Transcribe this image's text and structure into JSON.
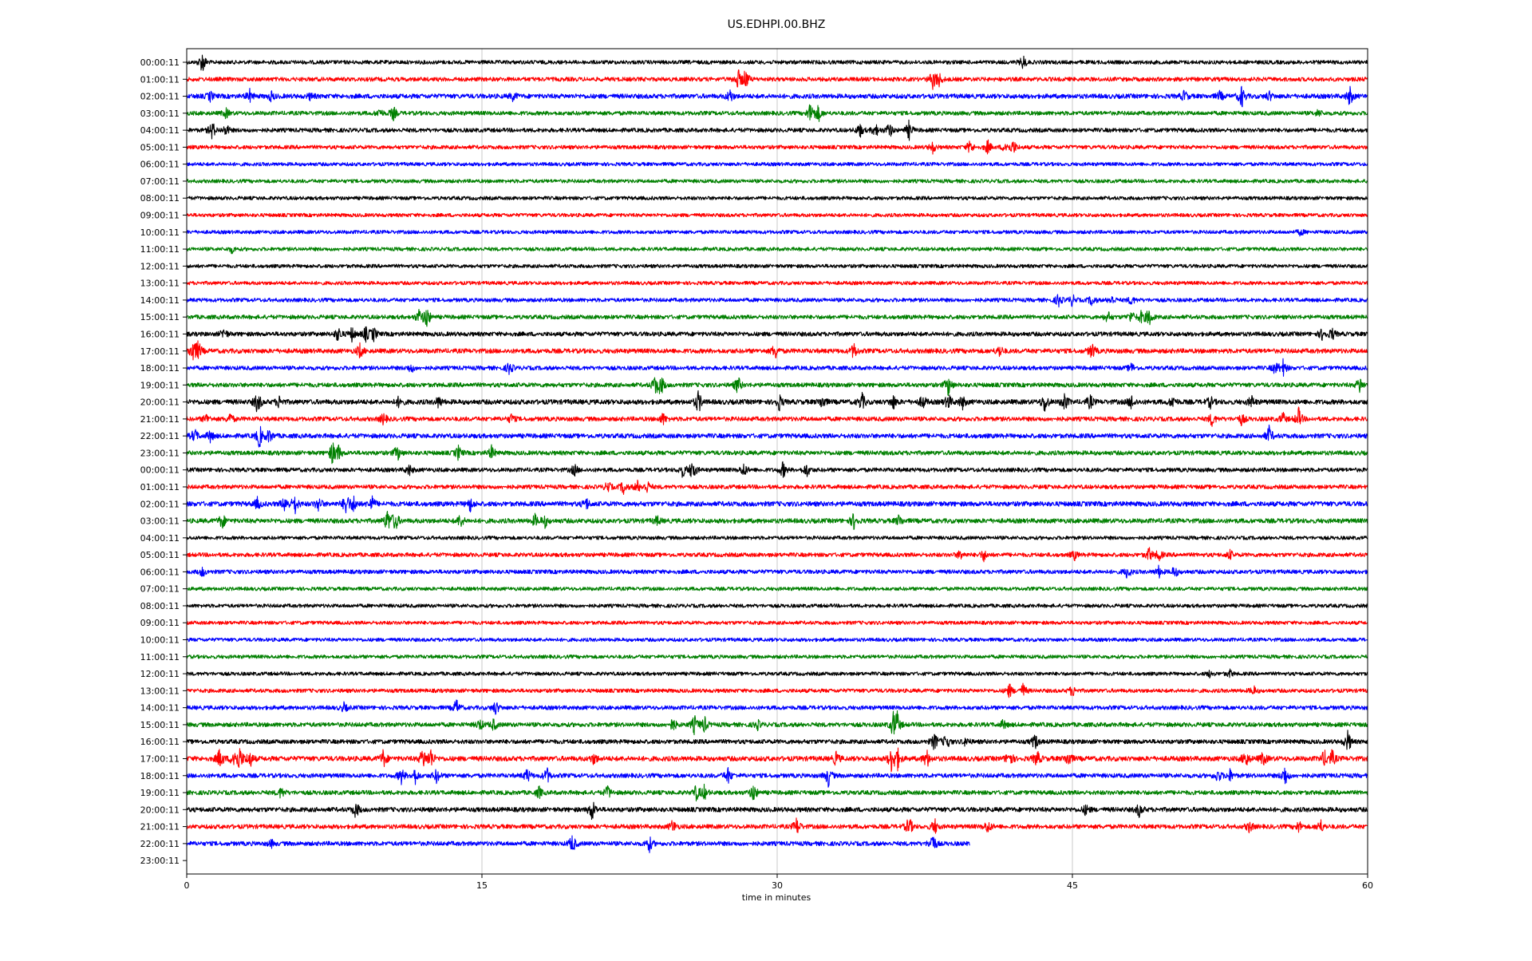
{
  "chart_data": {
    "type": "line",
    "title": "US.EDHPI.00.BHZ",
    "xlabel": "time in minutes",
    "ylabel": "",
    "xlim": [
      0,
      60
    ],
    "x_ticks": [
      "0",
      "15",
      "30",
      "45",
      "60"
    ],
    "grid": "vertical",
    "trace_colors": [
      "#000000",
      "#ff0000",
      "#0000ff",
      "#008000"
    ],
    "row_labels": [
      "00:00:11",
      "01:00:11",
      "02:00:11",
      "03:00:11",
      "04:00:11",
      "05:00:11",
      "06:00:11",
      "07:00:11",
      "08:00:11",
      "09:00:11",
      "10:00:11",
      "11:00:11",
      "12:00:11",
      "13:00:11",
      "14:00:11",
      "15:00:11",
      "16:00:11",
      "17:00:11",
      "18:00:11",
      "19:00:11",
      "20:00:11",
      "21:00:11",
      "22:00:11",
      "23:00:11",
      "00:00:11",
      "01:00:11",
      "02:00:11",
      "03:00:11",
      "04:00:11",
      "05:00:11",
      "06:00:11",
      "07:00:11",
      "08:00:11",
      "09:00:11",
      "10:00:11",
      "11:00:11",
      "12:00:11",
      "13:00:11",
      "14:00:11",
      "15:00:11",
      "16:00:11",
      "17:00:11",
      "18:00:11",
      "19:00:11",
      "20:00:11",
      "21:00:11",
      "22:00:11",
      "23:00:11"
    ],
    "trace_end_minutes": [
      60,
      60,
      60,
      60,
      60,
      60,
      60,
      60,
      60,
      60,
      60,
      60,
      60,
      60,
      60,
      60,
      60,
      60,
      60,
      60,
      60,
      60,
      60,
      60,
      60,
      60,
      60,
      60,
      60,
      60,
      60,
      60,
      60,
      60,
      60,
      60,
      60,
      60,
      60,
      60,
      60,
      60,
      60,
      60,
      60,
      60,
      39.8,
      0
    ],
    "noise_level": [
      0.25,
      0.3,
      0.4,
      0.3,
      0.3,
      0.25,
      0.2,
      0.2,
      0.2,
      0.2,
      0.2,
      0.2,
      0.2,
      0.2,
      0.25,
      0.3,
      0.35,
      0.4,
      0.3,
      0.35,
      0.45,
      0.35,
      0.4,
      0.35,
      0.3,
      0.3,
      0.45,
      0.4,
      0.2,
      0.3,
      0.3,
      0.2,
      0.2,
      0.2,
      0.2,
      0.2,
      0.2,
      0.25,
      0.3,
      0.35,
      0.35,
      0.45,
      0.35,
      0.35,
      0.4,
      0.35,
      0.35,
      0
    ],
    "events": [
      [
        [
          0.8,
          1.0
        ],
        [
          42.5,
          0.6
        ]
      ],
      [
        [
          28.0,
          0.9
        ],
        [
          28.4,
          0.9
        ],
        [
          37.9,
          0.8
        ],
        [
          38.2,
          0.7
        ]
      ],
      [
        [
          1.2,
          0.4
        ],
        [
          3.2,
          0.5
        ],
        [
          4.3,
          0.4
        ],
        [
          6.3,
          0.3
        ],
        [
          16.6,
          0.4
        ],
        [
          27.6,
          0.6
        ],
        [
          50.7,
          0.5
        ],
        [
          52.5,
          0.4
        ],
        [
          53.6,
          1.0
        ],
        [
          55.0,
          0.4
        ],
        [
          59.1,
          0.8
        ]
      ],
      [
        [
          2.0,
          0.4
        ],
        [
          9.8,
          0.4
        ],
        [
          10.5,
          0.6
        ],
        [
          31.7,
          1.0
        ],
        [
          32.1,
          0.7
        ],
        [
          57.5,
          0.3
        ]
      ],
      [
        [
          1.3,
          0.8
        ],
        [
          2.0,
          0.5
        ],
        [
          34.2,
          0.6
        ],
        [
          35.0,
          0.6
        ],
        [
          35.7,
          0.7
        ],
        [
          36.7,
          0.8
        ]
      ],
      [
        [
          37.9,
          0.5
        ],
        [
          39.8,
          0.6
        ],
        [
          40.7,
          0.6
        ],
        [
          41.6,
          0.5
        ],
        [
          42.0,
          0.6
        ]
      ],
      [],
      [],
      [],
      [],
      [
        [
          56.6,
          0.3
        ]
      ],
      [
        [
          2.3,
          0.3
        ]
      ],
      [],
      [],
      [
        [
          44.3,
          0.6
        ],
        [
          45.0,
          0.5
        ],
        [
          46.0,
          0.5
        ],
        [
          47.0,
          0.4
        ],
        [
          48.0,
          0.4
        ]
      ],
      [
        [
          11.8,
          0.6
        ],
        [
          12.2,
          1.0
        ],
        [
          46.8,
          0.5
        ],
        [
          48.0,
          0.5
        ],
        [
          48.5,
          0.5
        ],
        [
          48.9,
          0.8
        ]
      ],
      [
        [
          1.9,
          0.5
        ],
        [
          7.7,
          0.7
        ],
        [
          8.4,
          0.6
        ],
        [
          9.1,
          0.6
        ],
        [
          9.5,
          0.6
        ],
        [
          57.7,
          0.5
        ],
        [
          58.2,
          0.5
        ]
      ],
      [
        [
          0.3,
          1.0
        ],
        [
          0.6,
          0.8
        ],
        [
          8.8,
          0.6
        ],
        [
          29.9,
          0.7
        ],
        [
          33.9,
          0.7
        ],
        [
          41.3,
          0.5
        ],
        [
          46.0,
          0.7
        ]
      ],
      [
        [
          11.4,
          0.4
        ],
        [
          16.4,
          0.6
        ],
        [
          48.0,
          0.4
        ],
        [
          55.3,
          0.5
        ],
        [
          55.7,
          0.7
        ]
      ],
      [
        [
          23.8,
          0.8
        ],
        [
          24.1,
          0.9
        ],
        [
          28.0,
          0.8
        ],
        [
          38.7,
          0.9
        ],
        [
          59.6,
          0.7
        ]
      ],
      [
        [
          3.6,
          1.0
        ],
        [
          4.7,
          0.5
        ],
        [
          10.8,
          0.5
        ],
        [
          12.8,
          0.5
        ],
        [
          26.0,
          1.0
        ],
        [
          30.1,
          0.7
        ],
        [
          32.3,
          0.6
        ],
        [
          34.3,
          0.8
        ],
        [
          35.9,
          0.6
        ],
        [
          37.4,
          0.6
        ],
        [
          38.7,
          0.7
        ],
        [
          39.4,
          0.6
        ],
        [
          43.6,
          0.9
        ],
        [
          44.6,
          0.8
        ],
        [
          45.9,
          0.6
        ],
        [
          48.0,
          0.6
        ],
        [
          50.1,
          0.5
        ],
        [
          52.0,
          0.5
        ],
        [
          54.1,
          0.5
        ]
      ],
      [
        [
          1.0,
          0.4
        ],
        [
          2.2,
          0.5
        ],
        [
          10.0,
          0.5
        ],
        [
          16.5,
          0.4
        ],
        [
          24.2,
          0.5
        ],
        [
          52.1,
          0.6
        ],
        [
          53.6,
          0.5
        ],
        [
          55.7,
          0.5
        ],
        [
          56.5,
          0.9
        ]
      ],
      [
        [
          0.4,
          0.6
        ],
        [
          1.2,
          0.5
        ],
        [
          3.7,
          1.0
        ],
        [
          4.2,
          0.6
        ],
        [
          55.0,
          0.8
        ]
      ],
      [
        [
          7.4,
          0.9
        ],
        [
          7.7,
          0.7
        ],
        [
          10.7,
          0.7
        ],
        [
          13.8,
          0.6
        ],
        [
          15.5,
          0.6
        ]
      ],
      [
        [
          11.3,
          0.5
        ],
        [
          19.7,
          0.5
        ],
        [
          25.2,
          0.6
        ],
        [
          25.7,
          1.0
        ],
        [
          28.3,
          0.6
        ],
        [
          30.3,
          0.7
        ],
        [
          31.5,
          0.6
        ]
      ],
      [
        [
          21.4,
          0.5
        ],
        [
          22.2,
          0.6
        ],
        [
          22.9,
          0.5
        ],
        [
          23.4,
          0.5
        ]
      ],
      [
        [
          3.6,
          0.5
        ],
        [
          5.0,
          0.7
        ],
        [
          5.5,
          0.8
        ],
        [
          6.7,
          0.6
        ],
        [
          8.1,
          1.0
        ],
        [
          8.5,
          0.7
        ],
        [
          9.4,
          0.7
        ],
        [
          14.4,
          0.6
        ],
        [
          20.3,
          0.5
        ]
      ],
      [
        [
          1.8,
          0.7
        ],
        [
          10.2,
          1.0
        ],
        [
          10.6,
          0.9
        ],
        [
          13.9,
          0.6
        ],
        [
          17.7,
          0.5
        ],
        [
          18.2,
          0.5
        ],
        [
          23.9,
          0.4
        ],
        [
          33.9,
          0.7
        ],
        [
          36.2,
          0.5
        ]
      ],
      [],
      [
        [
          39.3,
          0.4
        ],
        [
          40.5,
          0.5
        ],
        [
          45.1,
          0.4
        ],
        [
          48.9,
          0.6
        ],
        [
          49.4,
          0.5
        ],
        [
          53.0,
          0.4
        ]
      ],
      [
        [
          0.8,
          0.4
        ],
        [
          47.8,
          0.6
        ],
        [
          49.4,
          0.5
        ],
        [
          50.2,
          0.5
        ]
      ],
      [],
      [],
      [],
      [],
      [],
      [
        [
          52.0,
          0.3
        ],
        [
          53.0,
          0.3
        ]
      ],
      [
        [
          41.8,
          0.6
        ],
        [
          42.5,
          0.6
        ],
        [
          45.0,
          0.5
        ],
        [
          54.2,
          0.4
        ]
      ],
      [
        [
          8.0,
          0.4
        ],
        [
          13.7,
          0.7
        ],
        [
          15.7,
          0.6
        ]
      ],
      [
        [
          14.9,
          0.5
        ],
        [
          15.6,
          0.5
        ],
        [
          24.7,
          0.6
        ],
        [
          25.8,
          0.8
        ],
        [
          26.3,
          0.7
        ],
        [
          29.0,
          0.4
        ],
        [
          35.9,
          1.0
        ],
        [
          36.1,
          0.9
        ],
        [
          41.5,
          0.4
        ]
      ],
      [
        [
          38.0,
          0.8
        ],
        [
          38.6,
          0.7
        ],
        [
          39.6,
          0.4
        ],
        [
          43.1,
          0.7
        ],
        [
          59.0,
          1.0
        ]
      ],
      [
        [
          1.7,
          1.0
        ],
        [
          2.4,
          0.9
        ],
        [
          2.7,
          1.0
        ],
        [
          3.2,
          0.8
        ],
        [
          10.0,
          0.8
        ],
        [
          12.0,
          0.9
        ],
        [
          12.4,
          0.9
        ],
        [
          20.7,
          0.5
        ],
        [
          33.0,
          0.6
        ],
        [
          35.8,
          1.0
        ],
        [
          36.1,
          1.0
        ],
        [
          37.6,
          0.8
        ],
        [
          41.8,
          0.8
        ],
        [
          43.2,
          0.7
        ],
        [
          44.8,
          0.7
        ],
        [
          53.8,
          0.8
        ],
        [
          54.7,
          0.6
        ],
        [
          57.8,
          0.7
        ],
        [
          58.2,
          0.7
        ]
      ],
      [
        [
          10.9,
          0.7
        ],
        [
          11.6,
          0.7
        ],
        [
          12.7,
          0.6
        ],
        [
          17.3,
          0.6
        ],
        [
          18.3,
          0.7
        ],
        [
          27.5,
          0.7
        ],
        [
          32.6,
          0.9
        ],
        [
          52.4,
          0.6
        ],
        [
          53.0,
          0.5
        ],
        [
          55.8,
          0.9
        ]
      ],
      [
        [
          4.8,
          0.5
        ],
        [
          17.9,
          0.5
        ],
        [
          21.4,
          0.6
        ],
        [
          25.9,
          0.7
        ],
        [
          26.3,
          0.6
        ],
        [
          28.8,
          0.8
        ]
      ],
      [
        [
          8.6,
          0.7
        ],
        [
          20.6,
          1.0
        ],
        [
          45.7,
          0.5
        ],
        [
          48.4,
          0.6
        ]
      ],
      [
        [
          24.7,
          0.6
        ],
        [
          31.0,
          0.8
        ],
        [
          36.7,
          0.9
        ],
        [
          38.0,
          0.7
        ],
        [
          40.7,
          0.6
        ],
        [
          54.0,
          0.5
        ],
        [
          56.5,
          0.5
        ],
        [
          57.6,
          0.6
        ]
      ],
      [
        [
          19.6,
          0.8
        ],
        [
          23.5,
          0.7
        ],
        [
          37.9,
          1.0
        ],
        [
          4.3,
          0.3
        ]
      ],
      []
    ]
  }
}
